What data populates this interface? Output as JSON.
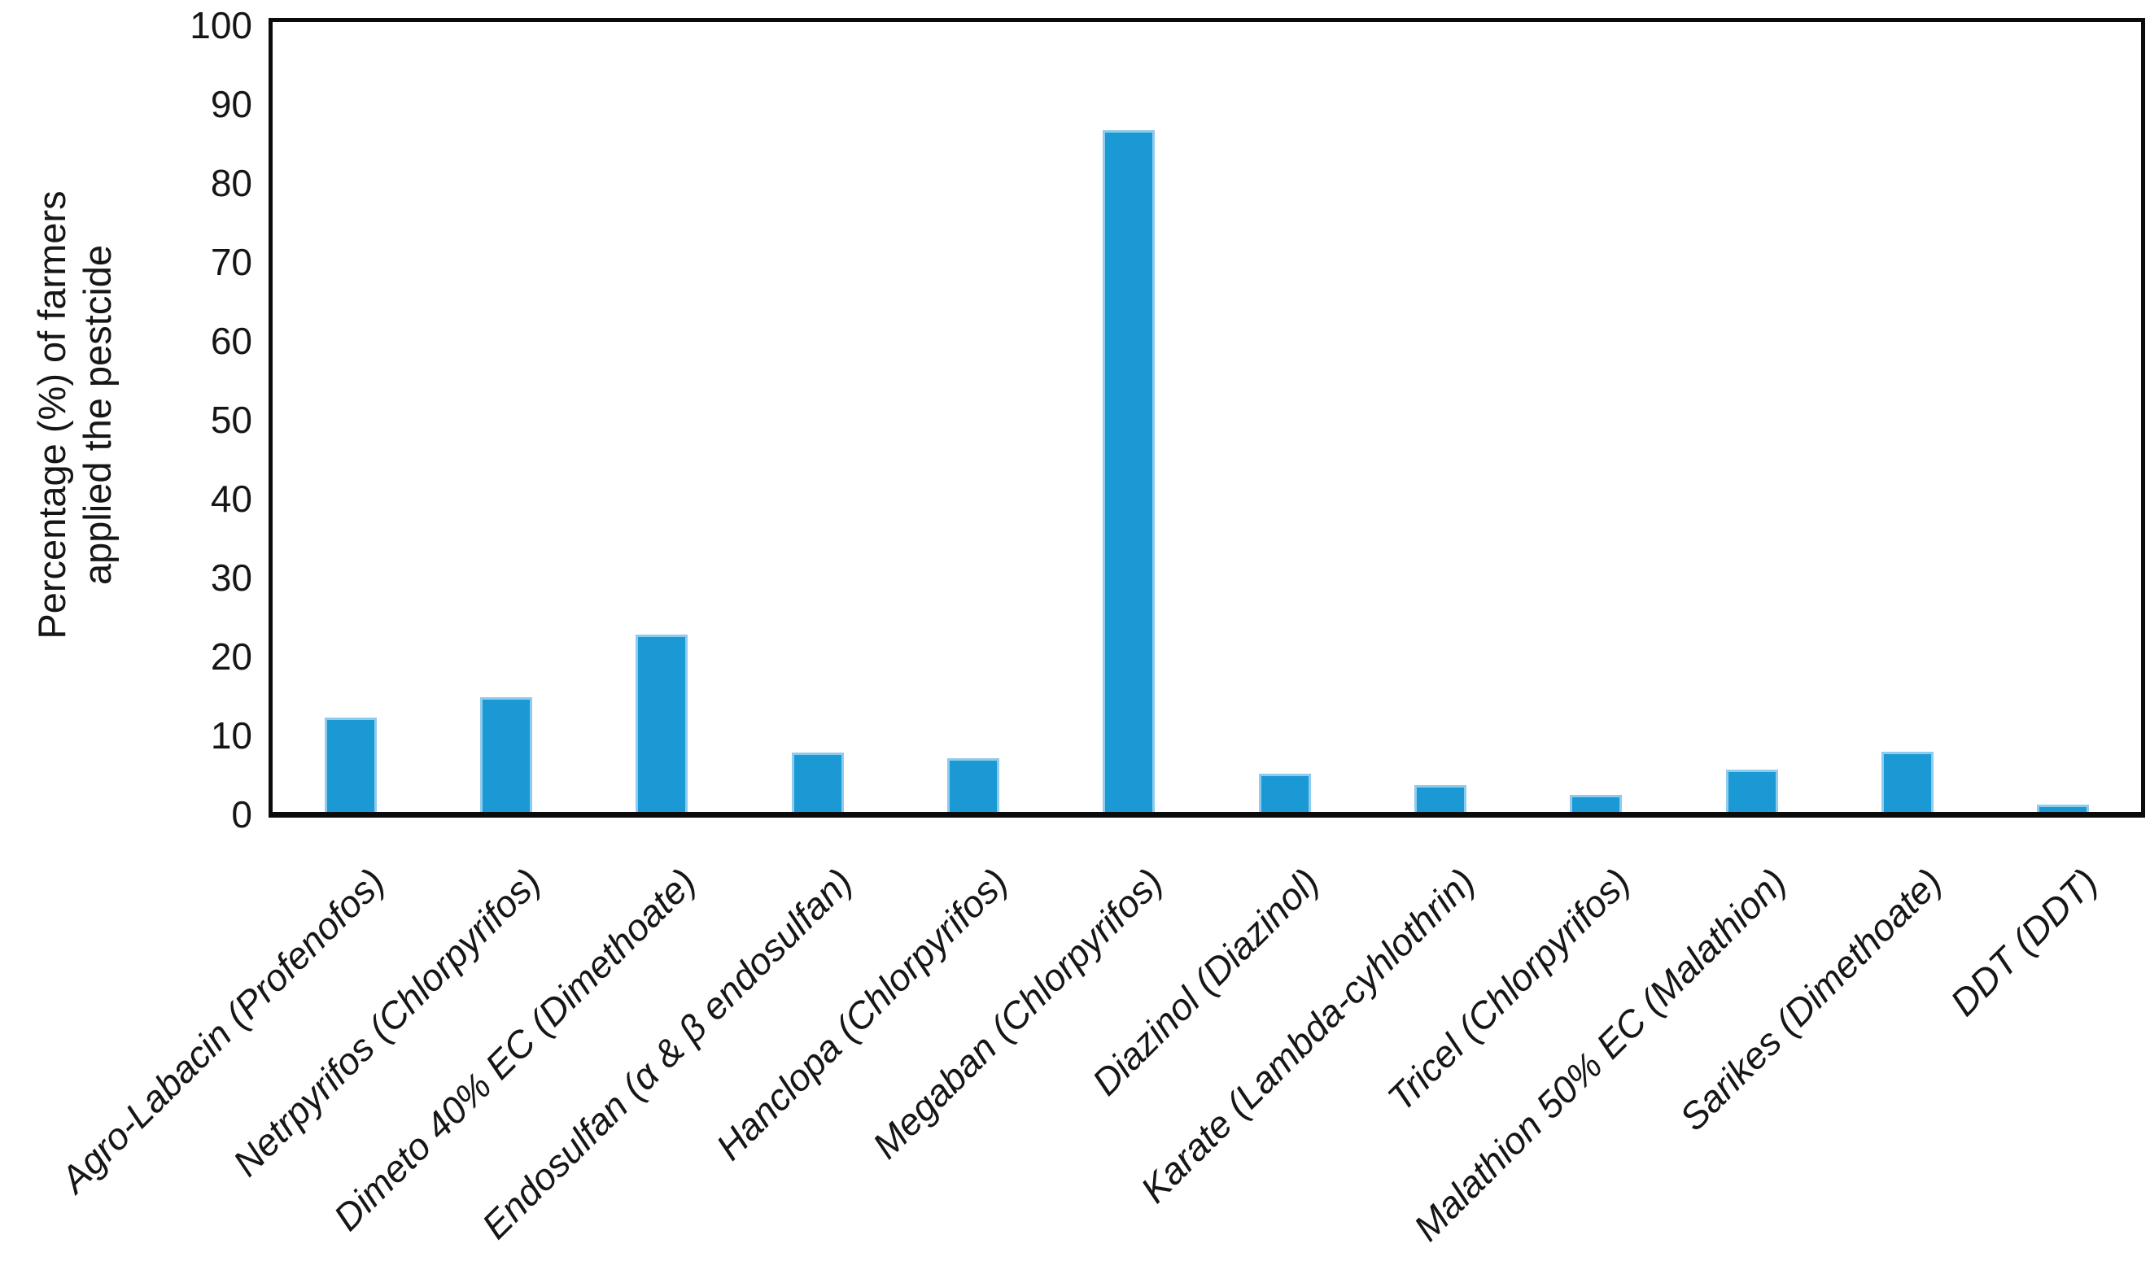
{
  "chart_data": {
    "type": "bar",
    "title": "",
    "ylabel": "Percentage (%) of farmers applied the pestcide",
    "ylabel_lines": {
      "line1": "Percentage (%) of farmers",
      "line2": "applied the pestcide"
    },
    "xlabel": "",
    "categories": [
      "Agro-Labacin (Profenofos)",
      "Netrpyrifos (Chlorpyrifos)",
      "Dimeto 40% EC  (Dimethoate)",
      "Endosulfan (α & β endosulfan)",
      "Hanclopa (Chlorpyrifos)",
      "Megaban (Chlorpyrifos)",
      "Diazinol (Diazinol)",
      "Karate (Lambda-cyhlothrin)",
      "Tricel (Chlorpyrifos)",
      "Malathion 50% EC (Malathion)",
      "Sarikes (Dimethoate)",
      "DDT (DDT)"
    ],
    "values": [
      12,
      14.5,
      22.5,
      7.5,
      6.8,
      86.4,
      4.8,
      3.4,
      2.2,
      5.4,
      7.6,
      0.9
    ],
    "yticks": [
      0,
      10,
      20,
      30,
      40,
      50,
      60,
      70,
      80,
      90,
      100
    ],
    "ylim": [
      0,
      100
    ],
    "grid": false,
    "legend_position": "none",
    "bar_color": "#1a99d5",
    "bar_edge_color": "#8ecbec",
    "axis_color": "#0b0b0b",
    "text_color": "#161616",
    "background_color": "#ffffff"
  }
}
